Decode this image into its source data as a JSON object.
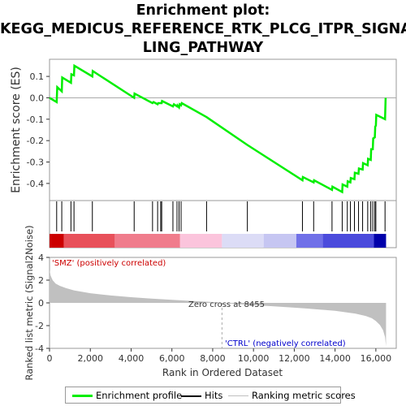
{
  "title_lines": [
    "Enrichment plot:",
    "KEGG_MEDICUS_REFERENCE_RTK_PLCG_ITPR_SIGNA",
    "LING_PATHWAY"
  ],
  "colors": {
    "es_line": "#00ee00",
    "hit": "#000000",
    "metric_fill": "#c0c0c0",
    "pos_label": "#cc0000",
    "neg_label": "#0000cc",
    "zero_line": "#aaaaaa"
  },
  "legend": {
    "enrichment_profile": "Enrichment profile",
    "hits": "Hits",
    "ranking_metric_scores": "Ranking metric scores"
  },
  "chart_data": [
    {
      "type": "line",
      "ylabel": "Enrichment score (ES)",
      "ylim": [
        -0.48,
        0.18
      ],
      "yticks": [
        0.1,
        0.0,
        -0.1,
        -0.2,
        -0.3,
        -0.4
      ],
      "ytick_labels": [
        "0.1",
        "0.0",
        "-0.1",
        "-0.2",
        "-0.3",
        "-0.4"
      ],
      "xlim": [
        0,
        17000
      ],
      "grid": false,
      "series": [
        {
          "x": [
            0,
            350,
            380,
            600,
            620,
            1050,
            1070,
            1200,
            1220,
            2100,
            2120,
            4150,
            4170,
            5050,
            5100,
            5300,
            5330,
            5500,
            5520,
            6050,
            6100,
            6250,
            6270,
            6350,
            6380,
            6450,
            6480,
            7700,
            9700,
            12400,
            12420,
            12950,
            12970,
            13850,
            13870,
            14350,
            14370,
            14600,
            14620,
            14750,
            14770,
            14950,
            14970,
            15150,
            15170,
            15350,
            15370,
            15600,
            15620,
            15750,
            15770,
            15850,
            15870,
            15950,
            15970,
            16000,
            16020,
            16450,
            16480
          ],
          "y": [
            0.0,
            -0.02,
            0.05,
            0.03,
            0.095,
            0.07,
            0.11,
            0.105,
            0.15,
            0.1,
            0.125,
            0.0,
            0.02,
            -0.025,
            -0.02,
            -0.03,
            -0.025,
            -0.025,
            -0.015,
            -0.04,
            -0.03,
            -0.04,
            -0.035,
            -0.045,
            -0.03,
            -0.035,
            -0.025,
            -0.09,
            -0.22,
            -0.385,
            -0.37,
            -0.395,
            -0.385,
            -0.43,
            -0.415,
            -0.44,
            -0.405,
            -0.415,
            -0.39,
            -0.395,
            -0.375,
            -0.38,
            -0.35,
            -0.355,
            -0.33,
            -0.335,
            -0.305,
            -0.315,
            -0.285,
            -0.29,
            -0.24,
            -0.24,
            -0.19,
            -0.185,
            -0.135,
            -0.13,
            -0.08,
            -0.1,
            0.0
          ]
        }
      ]
    },
    {
      "type": "scatter",
      "series_note": "",
      "hits": [
        350,
        600,
        1050,
        1200,
        2100,
        4150,
        5050,
        5300,
        5450,
        5500,
        6050,
        6250,
        6350,
        6450,
        7700,
        9700,
        12400,
        12950,
        13850,
        14350,
        14600,
        14750,
        14950,
        15150,
        15350,
        15600,
        15750,
        15850,
        15950,
        16000,
        16450
      ]
    },
    {
      "type": "area",
      "xlabel": "Rank in Ordered Dataset",
      "ylabel": "Ranked list metric (Signal2Noise)",
      "xlim": [
        0,
        17000
      ],
      "ylim": [
        -4,
        4
      ],
      "yticks": [
        4,
        2,
        0,
        -2,
        -4
      ],
      "ytick_labels": [
        "4",
        "2",
        "0",
        "-2",
        "-4"
      ],
      "xticks": [
        0,
        2000,
        4000,
        6000,
        8000,
        10000,
        12000,
        14000,
        16000
      ],
      "xtick_labels": [
        "0",
        "2,000",
        "4,000",
        "6,000",
        "8,000",
        "10,000",
        "12,000",
        "14,000",
        "16,000"
      ],
      "x": [
        0,
        50,
        150,
        300,
        500,
        800,
        1200,
        2000,
        3000,
        4000,
        5000,
        6000,
        7000,
        8000,
        8455,
        9000,
        10000,
        11000,
        12000,
        13000,
        14000,
        14500,
        15000,
        15500,
        15800,
        16000,
        16200,
        16350,
        16450,
        16500
      ],
      "y": [
        2.9,
        2.4,
        2.0,
        1.7,
        1.5,
        1.3,
        1.1,
        0.85,
        0.65,
        0.5,
        0.38,
        0.27,
        0.17,
        0.07,
        0.0,
        -0.08,
        -0.2,
        -0.3,
        -0.42,
        -0.55,
        -0.7,
        -0.82,
        -0.95,
        -1.15,
        -1.35,
        -1.6,
        -1.95,
        -2.4,
        -3.0,
        -3.8
      ],
      "pos_label": "'SMZ' (positively correlated)",
      "neg_label": "'CTRL' (negatively correlated)",
      "zero_cross_label": "Zero cross at 8455",
      "zero_cross": 8455,
      "color_bands": [
        {
          "from": 0,
          "to": 700,
          "color": "#cc0000"
        },
        {
          "from": 700,
          "to": 3200,
          "color": "#e8505a"
        },
        {
          "from": 3200,
          "to": 6400,
          "color": "#f07c8c"
        },
        {
          "from": 6400,
          "to": 8455,
          "color": "#fbc4dc"
        },
        {
          "from": 8455,
          "to": 10500,
          "color": "#dcdcf6"
        },
        {
          "from": 10500,
          "to": 12100,
          "color": "#c6c6f2"
        },
        {
          "from": 12100,
          "to": 13400,
          "color": "#7070e8"
        },
        {
          "from": 13400,
          "to": 15900,
          "color": "#4b4bdc"
        },
        {
          "from": 15900,
          "to": 16500,
          "color": "#0000aa"
        }
      ]
    }
  ]
}
